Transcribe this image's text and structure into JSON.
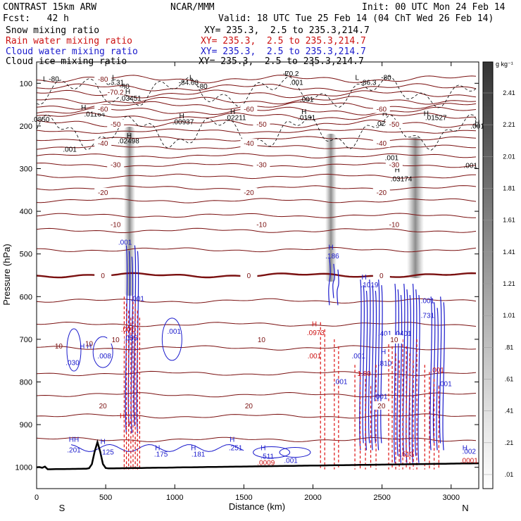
{
  "header": {
    "model": "CONTRAST 15km ARW",
    "org": "NCAR/MMM",
    "init": "Init: 00 UTC Mon 24 Feb 14",
    "fcst": "Fcst:   42 h",
    "valid": "Valid: 18 UTC Tue 25 Feb 14 (04 ChT Wed 26 Feb 14)"
  },
  "legend": [
    {
      "label": "Snow mixing ratio",
      "xy": "XY= 235.3,  2.5 to 235.3,214.7",
      "color": "#000000"
    },
    {
      "label": "Rain water mixing ratio",
      "xy": "XY= 235.3,  2.5 to 235.3,214.7",
      "color": "#cc1111"
    },
    {
      "label": "Cloud water mixing ratio",
      "xy": "XY= 235.3,  2.5 to 235.3,214.7",
      "color": "#1a1acc"
    },
    {
      "label": "Cloud ice mixing ratio",
      "xy": "XY= 235.3,  2.5 to 235.3,214.7",
      "color": "#000000"
    }
  ],
  "chart_data": {
    "type": "cross-section",
    "xlabel": "Distance (km)",
    "ylabel": "Pressure (hPa)",
    "xlim": [
      0,
      3200
    ],
    "ylim": [
      1050,
      50
    ],
    "x_ticks": [
      "0",
      "500",
      "1000",
      "1500",
      "2000",
      "2500",
      "3000"
    ],
    "y_ticks": [
      "100",
      "200",
      "300",
      "400",
      "500",
      "600",
      "700",
      "800",
      "900",
      "1000"
    ],
    "endpoints": {
      "left": "S",
      "right": "N"
    },
    "colorbar": {
      "unit": "g kg⁻¹",
      "levels": [
        "2.41",
        "2.21",
        "2.01",
        "1.81",
        "1.61",
        "1.41",
        "1.21",
        "1.01",
        ".81",
        ".61",
        ".41",
        ".21",
        ".01"
      ]
    },
    "temperature_contours": [
      {
        "label": "-80",
        "p": 90
      },
      {
        "label": "-70.2",
        "p": 120
      },
      {
        "label": "-60",
        "p": 160
      },
      {
        "label": "-50",
        "p": 195
      },
      {
        "label": "-40",
        "p": 240
      },
      {
        "label": "-30",
        "p": 290
      },
      {
        "label": "-20",
        "p": 355
      },
      {
        "label": "-10",
        "p": 430
      },
      {
        "label": "0",
        "p": 550
      },
      {
        "label": "10",
        "p": 700
      },
      {
        "label": "20",
        "p": 855
      }
    ],
    "annotations": [
      {
        "text": "L",
        "x": 60,
        "p": 95,
        "color": "black"
      },
      {
        "text": "-80",
        "x": 125,
        "p": 95,
        "color": "black"
      },
      {
        "text": "L",
        "x": 560,
        "p": 92,
        "color": "black"
      },
      {
        "text": "-86.31",
        "x": 560,
        "p": 104,
        "color": "black"
      },
      {
        "text": "-80",
        "x": 635,
        "p": 113,
        "color": "black"
      },
      {
        "text": "L",
        "x": 1120,
        "p": 92,
        "color": "black"
      },
      {
        "text": "-84.63",
        "x": 1100,
        "p": 104,
        "color": "black"
      },
      {
        "text": "-80",
        "x": 1200,
        "p": 113,
        "color": "black"
      },
      {
        "text": "L",
        "x": 1810,
        "p": 83,
        "color": "black"
      },
      {
        "text": "-70.2",
        "x": 1840,
        "p": 83,
        "color": "black"
      },
      {
        "text": ".001",
        "x": 1880,
        "p": 104,
        "color": "black"
      },
      {
        "text": "L",
        "x": 2320,
        "p": 92,
        "color": "black"
      },
      {
        "text": "-80",
        "x": 2530,
        "p": 92,
        "color": "black"
      },
      {
        "text": "-86.3",
        "x": 2400,
        "p": 104,
        "color": "black"
      },
      {
        "text": "H",
        "x": 660,
        "p": 125,
        "color": "black"
      },
      {
        "text": ".03451",
        "x": 680,
        "p": 141,
        "color": "black"
      },
      {
        "text": "H",
        "x": 340,
        "p": 162,
        "color": "black"
      },
      {
        "text": ".01164",
        "x": 420,
        "p": 178,
        "color": "black"
      },
      {
        "text": "H",
        "x": 1420,
        "p": 172,
        "color": "black"
      },
      {
        "text": ".02211",
        "x": 1440,
        "p": 186,
        "color": "black"
      },
      {
        "text": "H",
        "x": 1935,
        "p": 172,
        "color": "black"
      },
      {
        "text": ".0191",
        "x": 1955,
        "p": 186,
        "color": "black"
      },
      {
        "text": "H",
        "x": 2520,
        "p": 176,
        "color": "black"
      },
      {
        "text": ".02435",
        "x": 2530,
        "p": 200,
        "color": "black"
      },
      {
        "text": "H",
        "x": 2820,
        "p": 176,
        "color": "black"
      },
      {
        "text": ".01527",
        "x": 2890,
        "p": 186,
        "color": "black"
      },
      {
        "text": ".0850",
        "x": 30,
        "p": 190,
        "color": "black"
      },
      {
        "text": ".00937",
        "x": 1060,
        "p": 196,
        "color": "black"
      },
      {
        "text": ".001",
        "x": 1955,
        "p": 143,
        "color": "black"
      },
      {
        "text": "H",
        "x": 1050,
        "p": 182,
        "color": "black"
      },
      {
        "text": "H",
        "x": 670,
        "p": 228,
        "color": "black"
      },
      {
        "text": ".02498",
        "x": 665,
        "p": 241,
        "color": "black"
      },
      {
        "text": ".001",
        "x": 240,
        "p": 260,
        "color": "black"
      },
      {
        "text": ".001",
        "x": 2570,
        "p": 280,
        "color": "black"
      },
      {
        "text": "H",
        "x": 2610,
        "p": 308,
        "color": "black"
      },
      {
        "text": ".03174",
        "x": 2640,
        "p": 330,
        "color": "black"
      },
      {
        "text": ".001",
        "x": 3140,
        "p": 298,
        "color": "black"
      },
      {
        "text": ".001",
        "x": 3190,
        "p": 206,
        "color": "black"
      },
      {
        "text": "H",
        "x": 3190,
        "p": 198,
        "color": "black"
      },
      {
        "text": ".001",
        "x": 640,
        "p": 478,
        "color": "blue"
      },
      {
        "text": "H",
        "x": 2130,
        "p": 490,
        "color": "blue"
      },
      {
        "text": ".186",
        "x": 2140,
        "p": 510,
        "color": "blue"
      },
      {
        "text": "H",
        "x": 2370,
        "p": 560,
        "color": "blue"
      },
      {
        "text": ".1019",
        "x": 2410,
        "p": 578,
        "color": "blue"
      },
      {
        "text": ".001",
        "x": 730,
        "p": 610,
        "color": "blue"
      },
      {
        "text": ".001",
        "x": 2830,
        "p": 615,
        "color": "blue"
      },
      {
        "text": ".731",
        "x": 2830,
        "p": 650,
        "color": "blue"
      },
      {
        "text": ".401",
        "x": 2520,
        "p": 692,
        "color": "blue"
      },
      {
        "text": ".0401",
        "x": 2650,
        "p": 692,
        "color": "blue"
      },
      {
        "text": ".001",
        "x": 995,
        "p": 687,
        "color": "blue"
      },
      {
        "text": "H",
        "x": 2010,
        "p": 670,
        "color": "red"
      },
      {
        "text": ".0973",
        "x": 2020,
        "p": 690,
        "color": "red"
      },
      {
        "text": ".001",
        "x": 2010,
        "p": 745,
        "color": "red"
      },
      {
        "text": ".001",
        "x": 2330,
        "p": 745,
        "color": "blue"
      },
      {
        "text": "H",
        "x": 2510,
        "p": 735,
        "color": "blue"
      },
      {
        "text": ".810",
        "x": 2520,
        "p": 762,
        "color": "blue"
      },
      {
        "text": ".001",
        "x": 2900,
        "p": 778,
        "color": "red"
      },
      {
        "text": "1.89",
        "x": 2370,
        "p": 786,
        "color": "red"
      },
      {
        "text": ".001",
        "x": 2200,
        "p": 805,
        "color": "blue"
      },
      {
        "text": ".001",
        "x": 2490,
        "p": 840,
        "color": "blue"
      },
      {
        "text": ".001",
        "x": 2955,
        "p": 810,
        "color": "blue"
      },
      {
        "text": ".001",
        "x": 660,
        "p": 682,
        "color": "red"
      },
      {
        "text": ".055",
        "x": 680,
        "p": 703,
        "color": "blue"
      },
      {
        "text": "H",
        "x": 330,
        "p": 722,
        "color": "blue"
      },
      {
        "text": "H",
        "x": 380,
        "p": 722,
        "color": "blue"
      },
      {
        "text": ".008",
        "x": 490,
        "p": 745,
        "color": "blue"
      },
      {
        "text": ".030",
        "x": 260,
        "p": 760,
        "color": "blue"
      },
      {
        "text": "10",
        "x": 160,
        "p": 722,
        "color": "darkred"
      },
      {
        "text": "10",
        "x": 380,
        "p": 716,
        "color": "darkred"
      },
      {
        "text": "H",
        "x": 620,
        "p": 885,
        "color": "red"
      },
      {
        "text": ".7",
        "x": 665,
        "p": 905,
        "color": "red"
      },
      {
        "text": "HH",
        "x": 270,
        "p": 940,
        "color": "blue"
      },
      {
        "text": ".201",
        "x": 270,
        "p": 965,
        "color": "blue"
      },
      {
        "text": "H",
        "x": 480,
        "p": 945,
        "color": "blue"
      },
      {
        "text": ".125",
        "x": 510,
        "p": 970,
        "color": "blue"
      },
      {
        "text": "H",
        "x": 875,
        "p": 960,
        "color": "blue"
      },
      {
        "text": ".175",
        "x": 900,
        "p": 975,
        "color": "blue"
      },
      {
        "text": "H",
        "x": 1135,
        "p": 960,
        "color": "blue"
      },
      {
        "text": ".181",
        "x": 1170,
        "p": 975,
        "color": "blue"
      },
      {
        "text": "H",
        "x": 1415,
        "p": 940,
        "color": "blue"
      },
      {
        "text": ".251",
        "x": 1440,
        "p": 960,
        "color": "blue"
      },
      {
        "text": "H",
        "x": 1640,
        "p": 960,
        "color": "blue"
      },
      {
        "text": ".511",
        "x": 1670,
        "p": 980,
        "color": "blue"
      },
      {
        "text": ".0009",
        "x": 1660,
        "p": 995,
        "color": "red"
      },
      {
        "text": ".001",
        "x": 1840,
        "p": 990,
        "color": "blue"
      },
      {
        "text": ".513",
        "x": 2680,
        "p": 975,
        "color": "red"
      },
      {
        "text": "H",
        "x": 3100,
        "p": 960,
        "color": "blue"
      },
      {
        "text": ".002",
        "x": 3130,
        "p": 968,
        "color": "blue"
      },
      {
        "text": ".0001",
        "x": 3130,
        "p": 990,
        "color": "red"
      }
    ]
  }
}
